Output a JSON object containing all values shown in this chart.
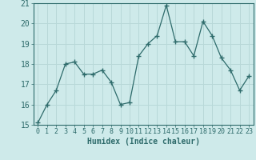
{
  "x": [
    0,
    1,
    2,
    3,
    4,
    5,
    6,
    7,
    8,
    9,
    10,
    11,
    12,
    13,
    14,
    15,
    16,
    17,
    18,
    19,
    20,
    21,
    22,
    23
  ],
  "y": [
    15.1,
    16.0,
    16.7,
    18.0,
    18.1,
    17.5,
    17.5,
    17.7,
    17.1,
    16.0,
    16.1,
    18.4,
    19.0,
    19.4,
    20.9,
    19.1,
    19.1,
    18.4,
    20.1,
    19.4,
    18.3,
    17.7,
    16.7,
    17.4
  ],
  "line_color": "#2e6b6b",
  "marker": "+",
  "background_color": "#ceeaea",
  "grid_color": "#b8d8d8",
  "xlabel": "Humidex (Indice chaleur)",
  "ylim": [
    15,
    21
  ],
  "xlim": [
    -0.5,
    23.5
  ],
  "yticks": [
    15,
    16,
    17,
    18,
    19,
    20,
    21
  ],
  "xticks": [
    0,
    1,
    2,
    3,
    4,
    5,
    6,
    7,
    8,
    9,
    10,
    11,
    12,
    13,
    14,
    15,
    16,
    17,
    18,
    19,
    20,
    21,
    22,
    23
  ],
  "label_fontsize": 7,
  "tick_fontsize": 6
}
